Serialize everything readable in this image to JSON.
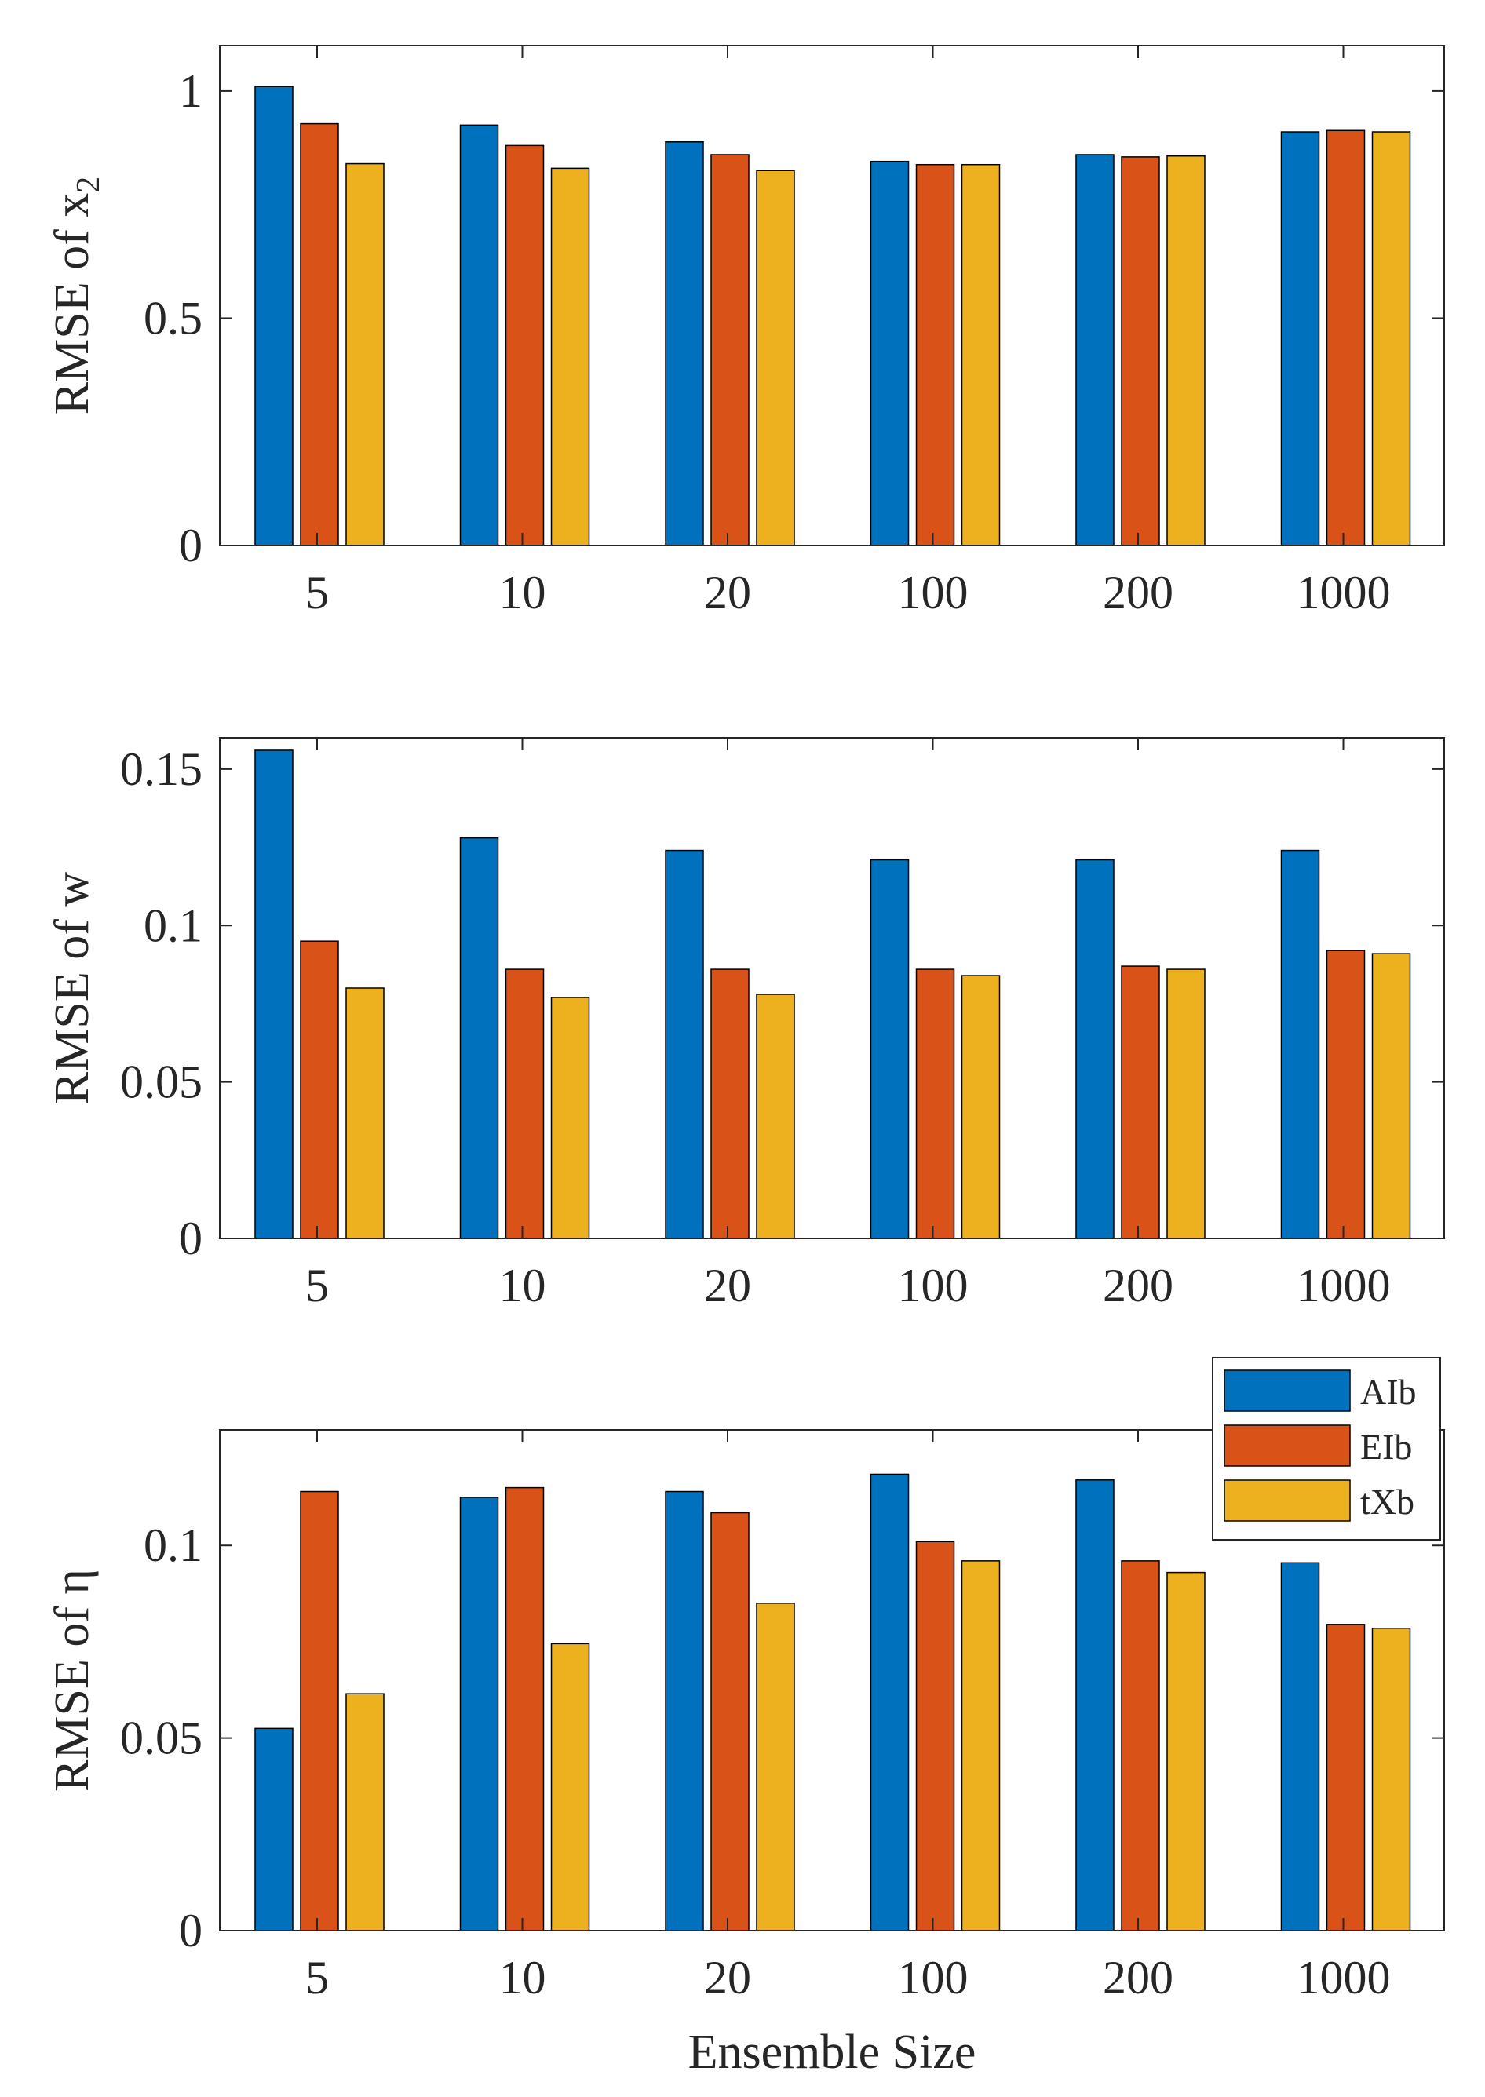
{
  "chart_data": [
    {
      "type": "bar",
      "title": "",
      "xlabel": "",
      "ylabel": "RMSE of x",
      "ylabel_subscript": "2",
      "categories": [
        "5",
        "10",
        "20",
        "100",
        "200",
        "1000"
      ],
      "ylim": [
        0,
        1.1
      ],
      "yticks": [
        0,
        0.5,
        1
      ],
      "ytick_labels": [
        "0",
        "0.5",
        "1"
      ],
      "series": [
        {
          "name": "AIb",
          "values": [
            1.01,
            0.925,
            0.888,
            0.845,
            0.86,
            0.91
          ]
        },
        {
          "name": "EIb",
          "values": [
            0.928,
            0.88,
            0.86,
            0.838,
            0.855,
            0.913
          ]
        },
        {
          "name": "tXb",
          "values": [
            0.84,
            0.83,
            0.825,
            0.838,
            0.857,
            0.91
          ]
        }
      ]
    },
    {
      "type": "bar",
      "title": "",
      "xlabel": "",
      "ylabel": "RMSE of w",
      "ylabel_subscript": "",
      "categories": [
        "5",
        "10",
        "20",
        "100",
        "200",
        "1000"
      ],
      "ylim": [
        0,
        0.16
      ],
      "yticks": [
        0,
        0.05,
        0.1,
        0.15
      ],
      "ytick_labels": [
        "0",
        "0.05",
        "0.1",
        "0.15"
      ],
      "series": [
        {
          "name": "AIb",
          "values": [
            0.156,
            0.128,
            0.124,
            0.121,
            0.121,
            0.124
          ]
        },
        {
          "name": "EIb",
          "values": [
            0.095,
            0.086,
            0.086,
            0.086,
            0.087,
            0.092
          ]
        },
        {
          "name": "tXb",
          "values": [
            0.08,
            0.077,
            0.078,
            0.084,
            0.086,
            0.091
          ]
        }
      ]
    },
    {
      "type": "bar",
      "title": "",
      "xlabel": "Ensemble Size",
      "ylabel": "RMSE of η",
      "ylabel_subscript": "",
      "categories": [
        "5",
        "10",
        "20",
        "100",
        "200",
        "1000"
      ],
      "ylim": [
        0,
        0.13
      ],
      "yticks": [
        0,
        0.05,
        0.1
      ],
      "ytick_labels": [
        "0",
        "0.05",
        "0.1"
      ],
      "series": [
        {
          "name": "AIb",
          "values": [
            0.0525,
            0.1125,
            0.114,
            0.1185,
            0.117,
            0.0955
          ]
        },
        {
          "name": "EIb",
          "values": [
            0.114,
            0.115,
            0.1085,
            0.101,
            0.096,
            0.0795
          ]
        },
        {
          "name": "tXb",
          "values": [
            0.0615,
            0.0745,
            0.085,
            0.096,
            0.093,
            0.0785
          ]
        }
      ]
    }
  ],
  "legend": {
    "placement": "top-right",
    "entries": [
      "AIb",
      "EIb",
      "tXb"
    ]
  },
  "colors": {
    "AIb": "#0072BD",
    "EIb": "#D95319",
    "tXb": "#EDB120",
    "axis": "#262626",
    "bar_edge": "#000000"
  }
}
